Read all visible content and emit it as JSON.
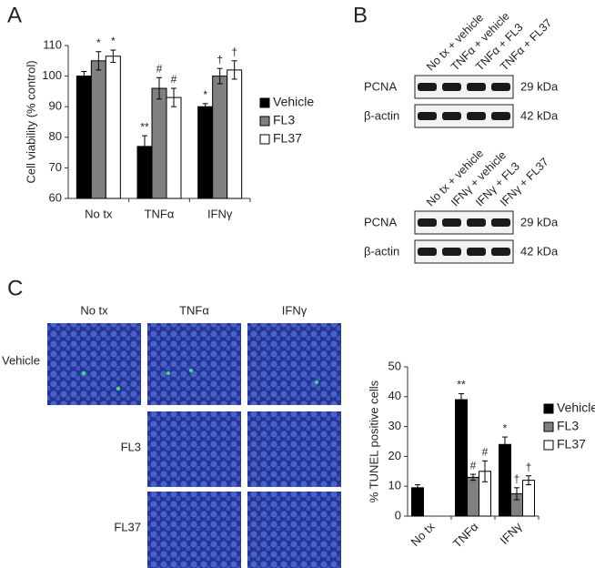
{
  "panels": {
    "a": "A",
    "b": "B",
    "c": "C"
  },
  "chart_data": [
    {
      "type": "bar",
      "ylabel": "Cell viability (% control)",
      "categories": [
        "No tx",
        "TNFα",
        "IFNγ"
      ],
      "series": [
        {
          "name": "Vehicle",
          "color": "#000000",
          "values": [
            100,
            77,
            90
          ],
          "errors": [
            1.5,
            3.5,
            1
          ],
          "annotations": [
            null,
            "**",
            "*"
          ]
        },
        {
          "name": "FL3",
          "color": "#808080",
          "values": [
            105,
            96,
            100
          ],
          "errors": [
            3,
            3.5,
            2.5
          ],
          "annotations": [
            "*",
            "#",
            "†"
          ]
        },
        {
          "name": "FL37",
          "color": "#ffffff",
          "values": [
            106.5,
            93,
            102
          ],
          "errors": [
            2,
            3,
            3
          ],
          "annotations": [
            "*",
            "#",
            "†"
          ]
        }
      ],
      "ylim": [
        60,
        110
      ],
      "yticks": [
        60,
        70,
        80,
        90,
        100,
        110
      ],
      "legend": "right"
    },
    {
      "type": "bar",
      "ylabel": "% TUNEL positive cells",
      "categories": [
        "No tx",
        "TNFα",
        "IFNγ"
      ],
      "series": [
        {
          "name": "Vehicle",
          "color": "#000000",
          "values": [
            9.5,
            39,
            24
          ],
          "errors": [
            1,
            2,
            2.5
          ],
          "annotations": [
            null,
            "**",
            "*"
          ]
        },
        {
          "name": "FL3",
          "color": "#808080",
          "values": [
            null,
            13,
            7.5
          ],
          "errors": [
            null,
            1,
            2
          ],
          "annotations": [
            null,
            "#",
            "†"
          ]
        },
        {
          "name": "FL37",
          "color": "#ffffff",
          "values": [
            null,
            15,
            12
          ],
          "errors": [
            null,
            3.5,
            1.5
          ],
          "annotations": [
            null,
            "#",
            "†"
          ]
        }
      ],
      "ylim": [
        0,
        50
      ],
      "yticks": [
        0,
        10,
        20,
        30,
        40,
        50
      ],
      "legend": "right",
      "xtick_rotation": 45
    }
  ],
  "blots": [
    {
      "lanes": [
        "No tx + vehicle",
        "TNFα + vehicle",
        "TNFα + FL3",
        "TNFα + FL37"
      ],
      "rows": [
        {
          "label": "PCNA",
          "size": "29 kDa"
        },
        {
          "label": "β-actin",
          "size": "42 kDa"
        }
      ]
    },
    {
      "lanes": [
        "No tx + vehicle",
        "IFNγ + vehicle",
        "IFNγ + FL3",
        "IFNγ + FL37"
      ],
      "rows": [
        {
          "label": "PCNA",
          "size": "29 kDa"
        },
        {
          "label": "β-actin",
          "size": "42 kDa"
        }
      ]
    }
  ],
  "micrographs": {
    "columns": [
      "No tx",
      "TNFα",
      "IFNγ"
    ],
    "rows": [
      "Vehicle",
      "FL3",
      "FL37"
    ]
  }
}
